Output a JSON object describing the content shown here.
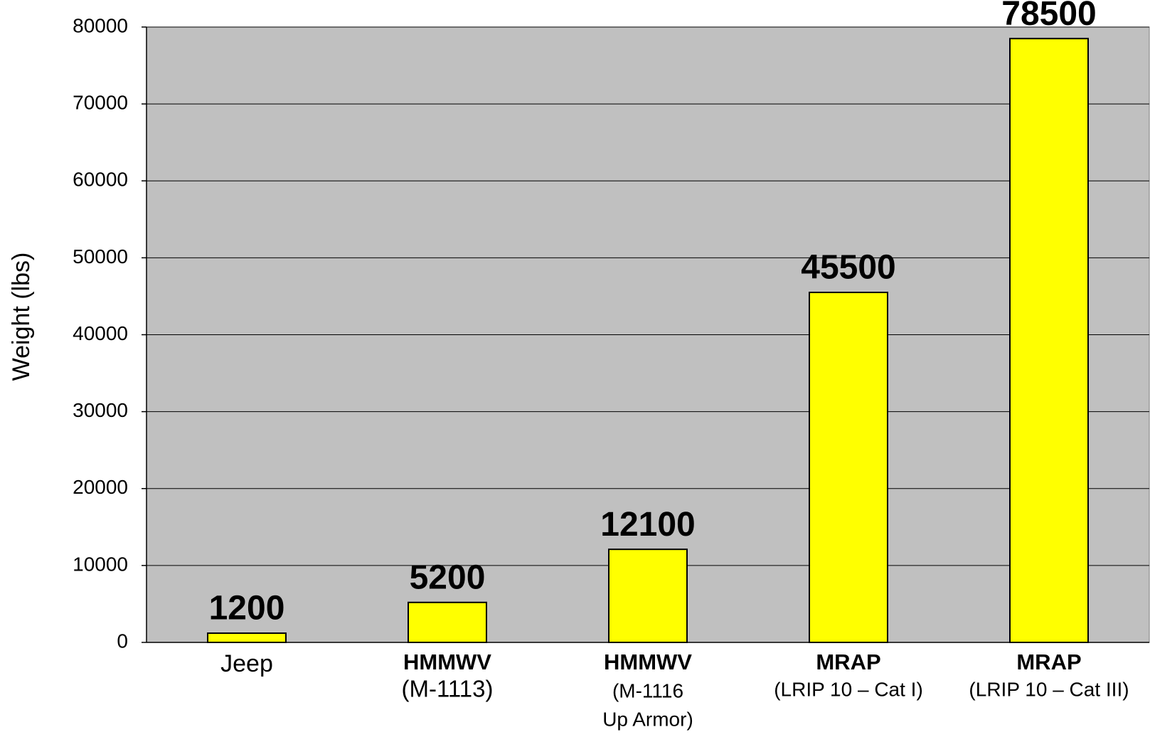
{
  "chart_data": {
    "type": "bar",
    "categories": [
      [
        "Jeep"
      ],
      [
        "HMMWV",
        "(M-1113)"
      ],
      [
        "HMMWV",
        "(M-1116",
        "Up Armor)"
      ],
      [
        "MRAP",
        "(LRIP 10 – Cat I)"
      ],
      [
        "MRAP",
        "(LRIP 10 – Cat III)"
      ]
    ],
    "values": [
      1200,
      5200,
      12100,
      45500,
      78500
    ],
    "color": "#ffff00",
    "y_label": "Weight (lbs)",
    "ylim": [
      0,
      80000
    ],
    "yticks": [
      0,
      10000,
      20000,
      30000,
      40000,
      50000,
      60000,
      70000,
      80000
    ],
    "grid": true
  }
}
